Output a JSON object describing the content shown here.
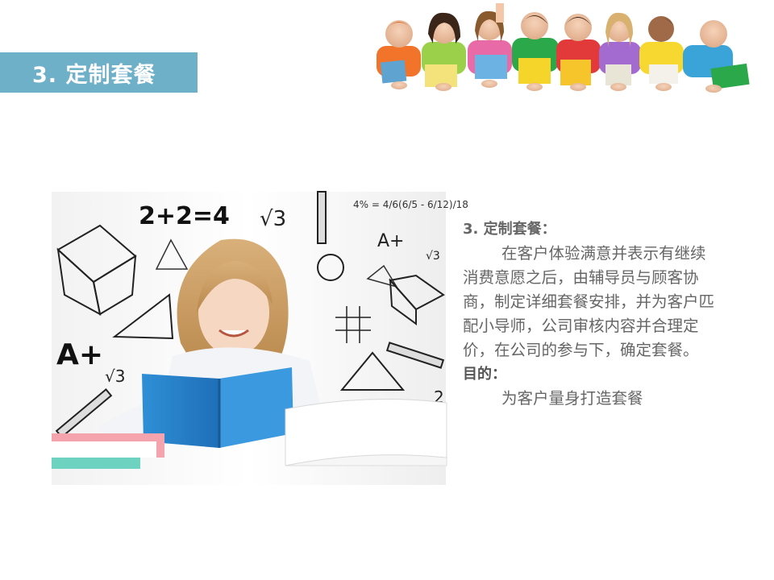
{
  "title": "3. 定制套餐",
  "content": {
    "heading": "3. 定制套餐：",
    "paragraph": "在客户体验满意并表示有继续消费意愿之后，由辅导员与顾客协商，制定详细套餐安排，并为客户匹配小导师，公司审核内容并合理定价，在公司的参与下，确定套餐。",
    "goal_heading": "目的：",
    "goal_text": "为客户量身打造套餐"
  },
  "study_image": {
    "chalk_texts": [
      "2+2=4",
      "√3",
      "A+",
      "√3",
      "A+",
      "√3",
      "2"
    ],
    "formula_text": "4% = 4/6(6/5 - 6/12)/18"
  },
  "colors": {
    "title_bar": "#6fb0c9",
    "body_text": "#666666"
  }
}
